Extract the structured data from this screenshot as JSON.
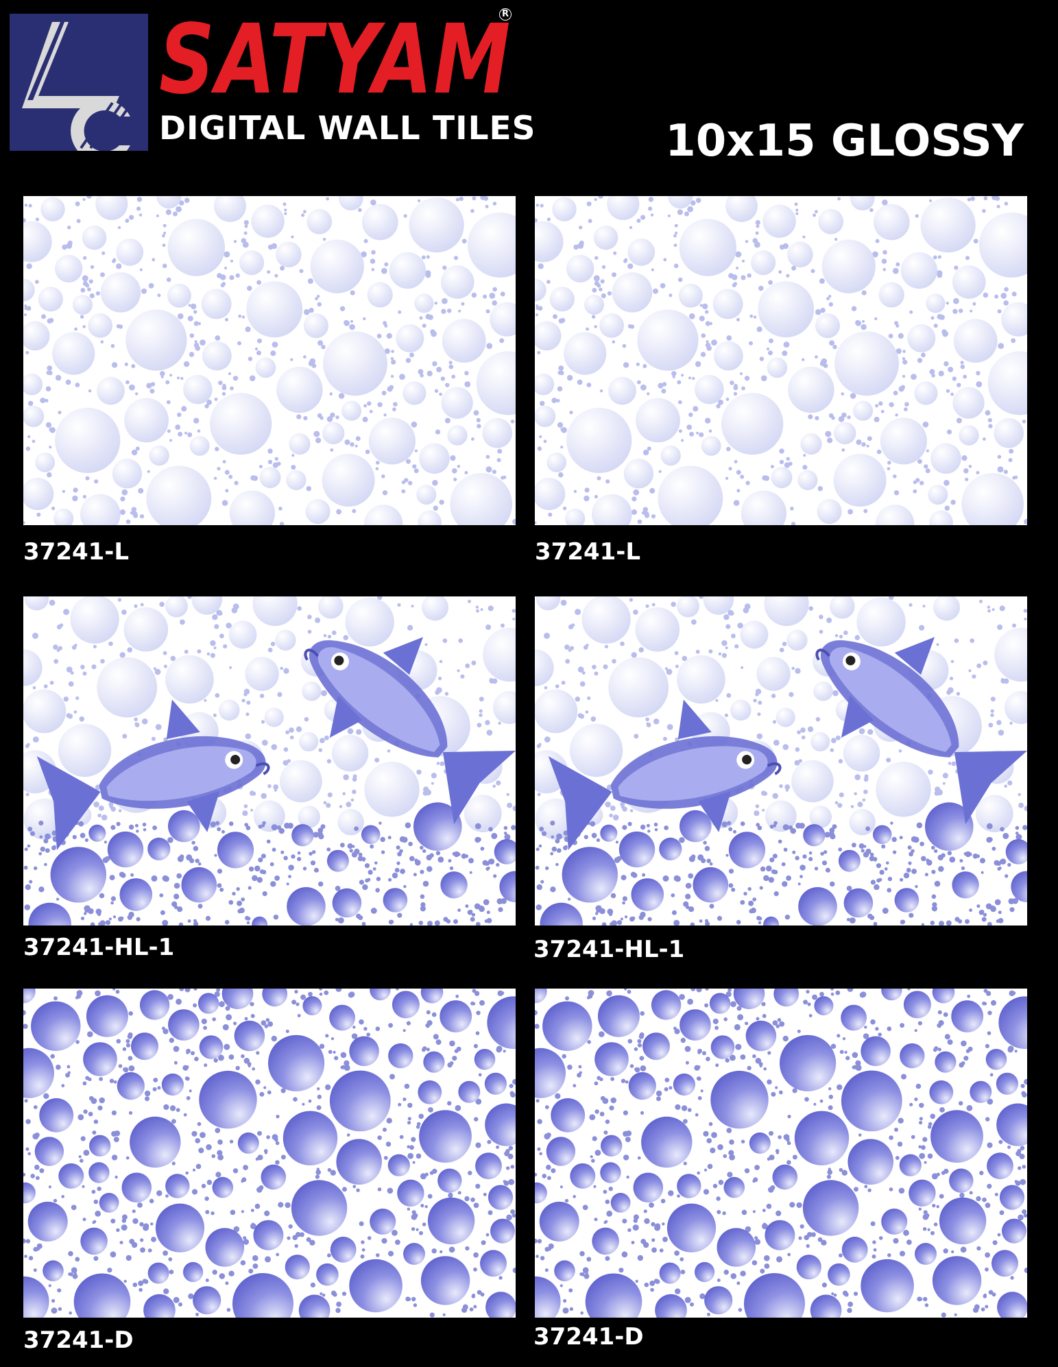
{
  "brand": {
    "name": "SATYAM",
    "registered": "R",
    "subtitle": "DIGITAL WALL TILES",
    "colors": {
      "name": "#e31e24",
      "emblem_bg": "#2a2e72",
      "emblem_lines": "#d9d9d9"
    }
  },
  "size_label": "10x15 GLOSSY",
  "tiles": [
    {
      "code": "37241-L",
      "pattern": "light-bubbles"
    },
    {
      "code": "37241-L",
      "pattern": "light-bubbles"
    },
    {
      "code": "37241-HL-1",
      "pattern": "fish-highlighter"
    },
    {
      "code": "37241-HL-1",
      "pattern": "fish-highlighter"
    },
    {
      "code": "37241-D",
      "pattern": "dark-bubbles"
    },
    {
      "code": "37241-D",
      "pattern": "dark-bubbles"
    }
  ],
  "colors": {
    "light_bubble": "#dfe2f7",
    "dark_bubble": "#6f72d8",
    "dot": "#8a8fd8",
    "fish": "#6b70d4"
  }
}
